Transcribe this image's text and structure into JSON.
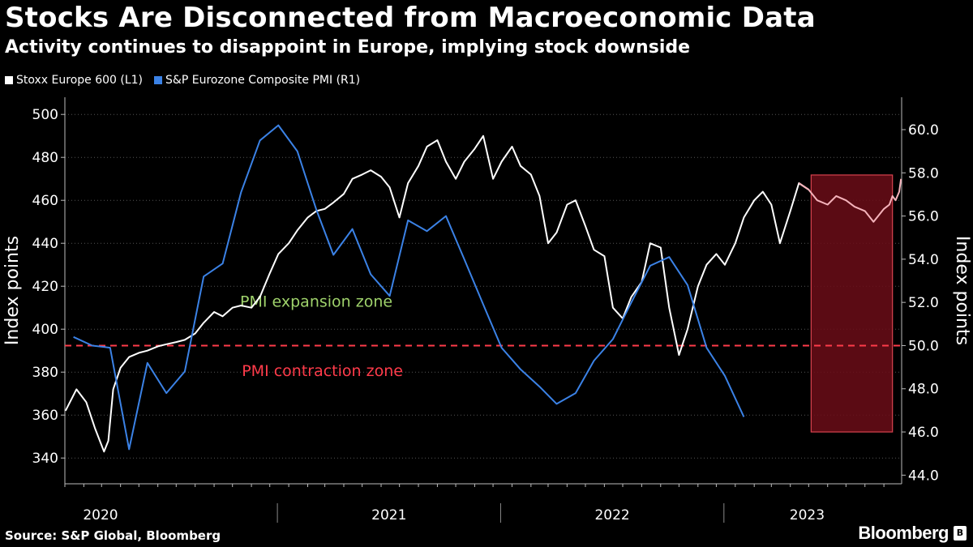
{
  "header": {
    "title": "Stocks Are Disconnected from Macroeconomic Data",
    "subtitle": "Activity continues to disappoint in Europe, implying stock downside"
  },
  "legend": {
    "items": [
      {
        "label": "Stoxx Europe 600 (L1)",
        "color": "#ffffff"
      },
      {
        "label": "S&P Eurozone Composite PMI (R1)",
        "color": "#3b82e6"
      }
    ]
  },
  "footer": {
    "source": "Source: S&P Global, Bloomberg",
    "brand": "Bloomberg",
    "badge": "B"
  },
  "chart_data": {
    "type": "line",
    "x_range": [
      "2020-01-01",
      "2023-09-30"
    ],
    "x_tick_labels": [
      "2020",
      "2021",
      "2022",
      "2023"
    ],
    "left_axis": {
      "label": "Index points",
      "ylim": [
        328,
        508
      ],
      "ticks": [
        340,
        360,
        380,
        400,
        420,
        440,
        460,
        480,
        500
      ]
    },
    "right_axis": {
      "label": "Index points",
      "ylim": [
        43.6,
        61.5
      ],
      "ticks": [
        "44.0",
        "46.0",
        "48.0",
        "50.0",
        "52.0",
        "54.0",
        "56.0",
        "58.0",
        "60.0"
      ]
    },
    "grid": "horizontal dotted",
    "threshold": {
      "value": 50.0,
      "axis": "right",
      "color": "#ff3b4a"
    },
    "annotations": [
      {
        "text": "PMI expansion zone",
        "color": "#9fd26b",
        "x": "2021-02-15",
        "y_right": 51.8
      },
      {
        "text": "PMI contraction zone",
        "color": "#ff3b4a",
        "x": "2021-02-25",
        "y_right": 48.6
      }
    ],
    "highlight": {
      "x_start": "2023-05-05",
      "x_end": "2023-09-15",
      "y_right_range": [
        46.0,
        57.9
      ],
      "fill": "#6b0d18",
      "border": "#d9434f"
    },
    "series": [
      {
        "name": "Stoxx Europe 600 (L1)",
        "axis": "left",
        "color": "#ffffff",
        "points": [
          [
            "2020-01-02",
            362
          ],
          [
            "2020-01-20",
            372
          ],
          [
            "2020-02-05",
            366
          ],
          [
            "2020-02-19",
            354
          ],
          [
            "2020-03-05",
            343
          ],
          [
            "2020-03-12",
            348
          ],
          [
            "2020-03-20",
            372
          ],
          [
            "2020-04-01",
            382
          ],
          [
            "2020-04-15",
            387
          ],
          [
            "2020-05-01",
            389
          ],
          [
            "2020-05-15",
            390
          ],
          [
            "2020-06-01",
            392
          ],
          [
            "2020-06-15",
            393
          ],
          [
            "2020-07-01",
            394
          ],
          [
            "2020-07-15",
            395
          ],
          [
            "2020-08-01",
            398
          ],
          [
            "2020-08-15",
            403
          ],
          [
            "2020-09-01",
            408
          ],
          [
            "2020-09-15",
            406
          ],
          [
            "2020-10-01",
            410
          ],
          [
            "2020-10-15",
            411
          ],
          [
            "2020-11-01",
            410
          ],
          [
            "2020-11-15",
            415
          ],
          [
            "2020-12-01",
            426
          ],
          [
            "2020-12-15",
            435
          ],
          [
            "2021-01-01",
            440
          ],
          [
            "2021-01-15",
            446
          ],
          [
            "2021-02-01",
            452
          ],
          [
            "2021-02-15",
            455
          ],
          [
            "2021-03-01",
            456
          ],
          [
            "2021-03-15",
            459
          ],
          [
            "2021-04-01",
            463
          ],
          [
            "2021-04-15",
            470
          ],
          [
            "2021-05-01",
            472
          ],
          [
            "2021-05-15",
            474
          ],
          [
            "2021-06-01",
            471
          ],
          [
            "2021-06-15",
            466
          ],
          [
            "2021-07-01",
            452
          ],
          [
            "2021-07-15",
            468
          ],
          [
            "2021-08-01",
            476
          ],
          [
            "2021-08-15",
            485
          ],
          [
            "2021-09-01",
            488
          ],
          [
            "2021-09-15",
            478
          ],
          [
            "2021-10-01",
            470
          ],
          [
            "2021-10-15",
            478
          ],
          [
            "2021-11-01",
            484
          ],
          [
            "2021-11-15",
            490
          ],
          [
            "2021-12-01",
            470
          ],
          [
            "2021-12-15",
            478
          ],
          [
            "2022-01-01",
            485
          ],
          [
            "2022-01-15",
            476
          ],
          [
            "2022-02-01",
            472
          ],
          [
            "2022-02-15",
            462
          ],
          [
            "2022-03-01",
            440
          ],
          [
            "2022-03-15",
            445
          ],
          [
            "2022-04-01",
            458
          ],
          [
            "2022-04-15",
            460
          ],
          [
            "2022-05-01",
            448
          ],
          [
            "2022-05-15",
            437
          ],
          [
            "2022-06-01",
            434
          ],
          [
            "2022-06-15",
            410
          ],
          [
            "2022-07-01",
            405
          ],
          [
            "2022-07-15",
            415
          ],
          [
            "2022-08-01",
            422
          ],
          [
            "2022-08-15",
            440
          ],
          [
            "2022-09-01",
            438
          ],
          [
            "2022-09-15",
            410
          ],
          [
            "2022-10-01",
            388
          ],
          [
            "2022-10-15",
            400
          ],
          [
            "2022-11-01",
            420
          ],
          [
            "2022-11-15",
            430
          ],
          [
            "2022-12-01",
            435
          ],
          [
            "2022-12-15",
            430
          ],
          [
            "2023-01-01",
            440
          ],
          [
            "2023-01-15",
            452
          ],
          [
            "2023-02-01",
            460
          ],
          [
            "2023-02-15",
            464
          ],
          [
            "2023-03-01",
            458
          ],
          [
            "2023-03-15",
            440
          ],
          [
            "2023-04-01",
            455
          ],
          [
            "2023-04-15",
            468
          ],
          [
            "2023-05-01",
            465
          ],
          [
            "2023-05-15",
            460
          ],
          [
            "2023-06-01",
            458
          ],
          [
            "2023-06-15",
            462
          ],
          [
            "2023-07-01",
            460
          ],
          [
            "2023-07-15",
            457
          ],
          [
            "2023-08-01",
            455
          ],
          [
            "2023-08-15",
            450
          ],
          [
            "2023-09-01",
            456
          ],
          [
            "2023-09-10",
            458
          ],
          [
            "2023-09-15",
            462
          ],
          [
            "2023-09-20",
            460
          ],
          [
            "2023-09-26",
            464
          ],
          [
            "2023-09-29",
            470
          ]
        ]
      },
      {
        "name": "S&P Eurozone Composite PMI (R1)",
        "axis": "right",
        "color": "#3b82e6",
        "points": [
          [
            "2020-01-15",
            50.4
          ],
          [
            "2020-02-15",
            50.0
          ],
          [
            "2020-03-15",
            49.9
          ],
          [
            "2020-04-15",
            45.2
          ],
          [
            "2020-05-15",
            49.2
          ],
          [
            "2020-06-15",
            47.8
          ],
          [
            "2020-07-15",
            48.8
          ],
          [
            "2020-08-15",
            53.2
          ],
          [
            "2020-09-15",
            53.8
          ],
          [
            "2020-10-15",
            57.1
          ],
          [
            "2020-11-15",
            59.5
          ],
          [
            "2020-12-15",
            60.2
          ],
          [
            "2021-01-15",
            59.0
          ],
          [
            "2021-02-15",
            56.3
          ],
          [
            "2021-03-15",
            54.2
          ],
          [
            "2021-04-15",
            55.4
          ],
          [
            "2021-05-15",
            53.3
          ],
          [
            "2021-06-15",
            52.3
          ],
          [
            "2021-07-15",
            55.8
          ],
          [
            "2021-08-15",
            55.3
          ],
          [
            "2021-09-15",
            56.0
          ],
          [
            "2021-10-15",
            54.0
          ],
          [
            "2021-11-15",
            51.9
          ],
          [
            "2021-12-15",
            49.9
          ],
          [
            "2022-01-15",
            48.9
          ],
          [
            "2022-02-15",
            48.1
          ],
          [
            "2022-03-15",
            47.3
          ],
          [
            "2022-04-15",
            47.8
          ],
          [
            "2022-05-15",
            49.3
          ],
          [
            "2022-06-15",
            50.3
          ],
          [
            "2022-07-15",
            52.0
          ],
          [
            "2022-08-15",
            53.7
          ],
          [
            "2022-09-15",
            54.1
          ],
          [
            "2022-10-15",
            52.8
          ],
          [
            "2022-11-15",
            49.9
          ],
          [
            "2022-12-15",
            48.6
          ],
          [
            "2023-01-15",
            46.7
          ]
        ]
      }
    ]
  }
}
